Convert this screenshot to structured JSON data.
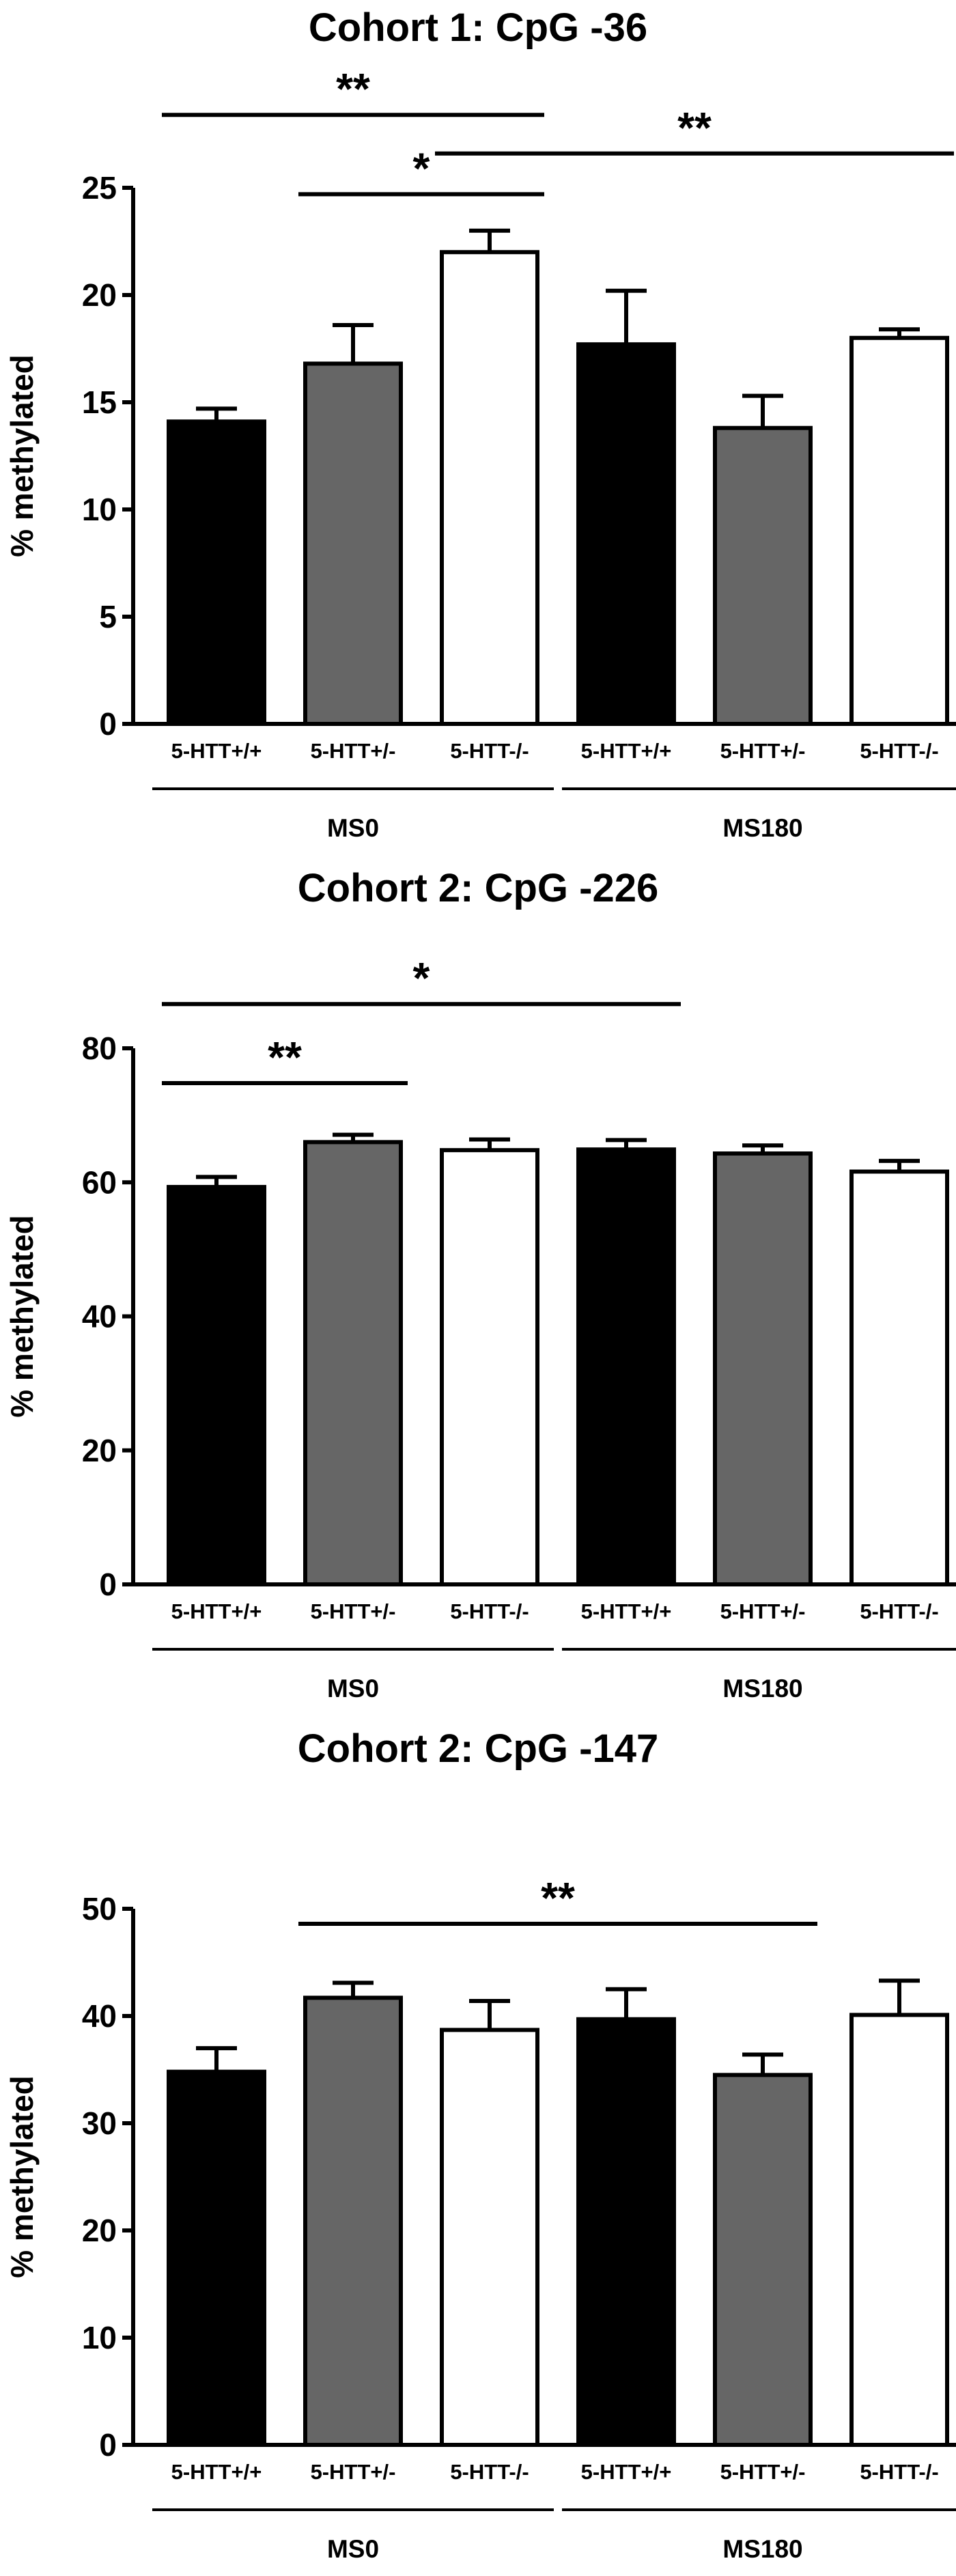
{
  "colors": {
    "wildtype": "#000000",
    "heterozygous": "#666666",
    "knockout": "#ffffff",
    "outline": "#000000"
  },
  "chart_data": [
    {
      "type": "bar",
      "title": "Cohort 1: CpG -36",
      "ylabel": "% methylated",
      "xlabel": "",
      "ylim": [
        0,
        25
      ],
      "yticks": [
        0,
        5,
        10,
        15,
        20,
        25
      ],
      "grid": false,
      "categories": [
        "5-HTT+/+",
        "5-HTT+/-",
        "5-HTT-/-",
        "5-HTT+/+",
        "5-HTT+/-",
        "5-HTT-/-"
      ],
      "values": [
        14.1,
        16.8,
        22.0,
        17.7,
        13.8,
        18.0
      ],
      "errors": [
        0.6,
        1.8,
        1.0,
        2.5,
        1.5,
        0.4
      ],
      "fills": [
        "wildtype",
        "heterozygous",
        "knockout",
        "wildtype",
        "heterozygous",
        "knockout"
      ],
      "groups": [
        {
          "label": "MS0",
          "from": 0,
          "to": 2
        },
        {
          "label": "MS180",
          "from": 3,
          "to": 5
        }
      ],
      "significance": [
        {
          "label": "**",
          "from": 0,
          "to": 2,
          "y": 28.4
        },
        {
          "label": "*",
          "from": 1,
          "to": 2,
          "y": 24.7
        },
        {
          "label": "**",
          "from": 2,
          "to": 5,
          "y": 26.6
        }
      ]
    },
    {
      "type": "bar",
      "title": "Cohort 2: CpG -226",
      "ylabel": "% methylated",
      "xlabel": "",
      "ylim": [
        0,
        80
      ],
      "yticks": [
        0,
        20,
        40,
        60,
        80
      ],
      "grid": false,
      "categories": [
        "5-HTT+/+",
        "5-HTT+/-",
        "5-HTT-/-",
        "5-HTT+/+",
        "5-HTT+/-",
        "5-HTT-/-"
      ],
      "values": [
        59.3,
        66.0,
        64.8,
        64.9,
        64.3,
        61.6
      ],
      "errors": [
        1.5,
        1.1,
        1.6,
        1.4,
        1.2,
        1.6
      ],
      "fills": [
        "wildtype",
        "heterozygous",
        "knockout",
        "wildtype",
        "heterozygous",
        "knockout"
      ],
      "groups": [
        {
          "label": "MS0",
          "from": 0,
          "to": 2
        },
        {
          "label": "MS180",
          "from": 3,
          "to": 5
        }
      ],
      "significance": [
        {
          "label": "*",
          "from": 0,
          "to": 3,
          "y": 86.6
        },
        {
          "label": "**",
          "from": 0,
          "to": 1,
          "y": 74.8
        }
      ]
    },
    {
      "type": "bar",
      "title": "Cohort 2: CpG -147",
      "ylabel": "% methylated",
      "xlabel": "",
      "ylim": [
        0,
        50
      ],
      "yticks": [
        0,
        10,
        20,
        30,
        40,
        50
      ],
      "grid": false,
      "categories": [
        "5-HTT+/+",
        "5-HTT+/-",
        "5-HTT-/-",
        "5-HTT+/+",
        "5-HTT+/-",
        "5-HTT-/-"
      ],
      "values": [
        34.8,
        41.7,
        38.7,
        39.7,
        34.5,
        40.1
      ],
      "errors": [
        2.2,
        1.4,
        2.7,
        2.8,
        1.9,
        3.2
      ],
      "fills": [
        "wildtype",
        "heterozygous",
        "knockout",
        "wildtype",
        "heterozygous",
        "knockout"
      ],
      "groups": [
        {
          "label": "MS0",
          "from": 0,
          "to": 2
        },
        {
          "label": "MS180",
          "from": 3,
          "to": 5
        }
      ],
      "significance": [
        {
          "label": "**",
          "from": 1,
          "to": 4,
          "y": 48.6
        }
      ]
    }
  ]
}
